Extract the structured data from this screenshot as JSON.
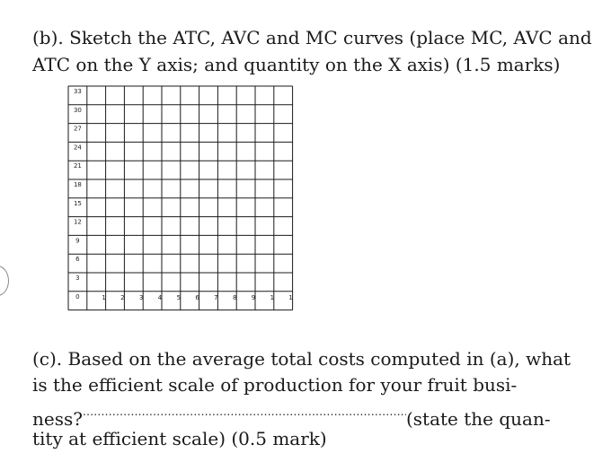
{
  "question_b": {
    "line1": "(b). Sketch the ATC, AVC and MC curves (place MC, AVC and",
    "line2": "ATC on the Y axis; and quantity on the X axis) (1.5 marks)"
  },
  "grid": {
    "y_ticks": [
      "33",
      "30",
      "27",
      "24",
      "21",
      "18",
      "15",
      "12",
      "9",
      "6",
      "3",
      "0"
    ],
    "x_ticks": [
      "1",
      "2",
      "3",
      "4",
      "5",
      "6",
      "7",
      "8",
      "9",
      "1",
      "1"
    ]
  },
  "question_c": {
    "line1": "(c). Based on the average total costs computed in (a), what",
    "line2": "is the efficient scale of production for your fruit busi-",
    "line3_prefix": "ness?",
    "line3_dots": "..............................................................................................",
    "line3_suffix": "(state the quan-",
    "line4": "tity at efficient scale) (0.5 mark)"
  }
}
